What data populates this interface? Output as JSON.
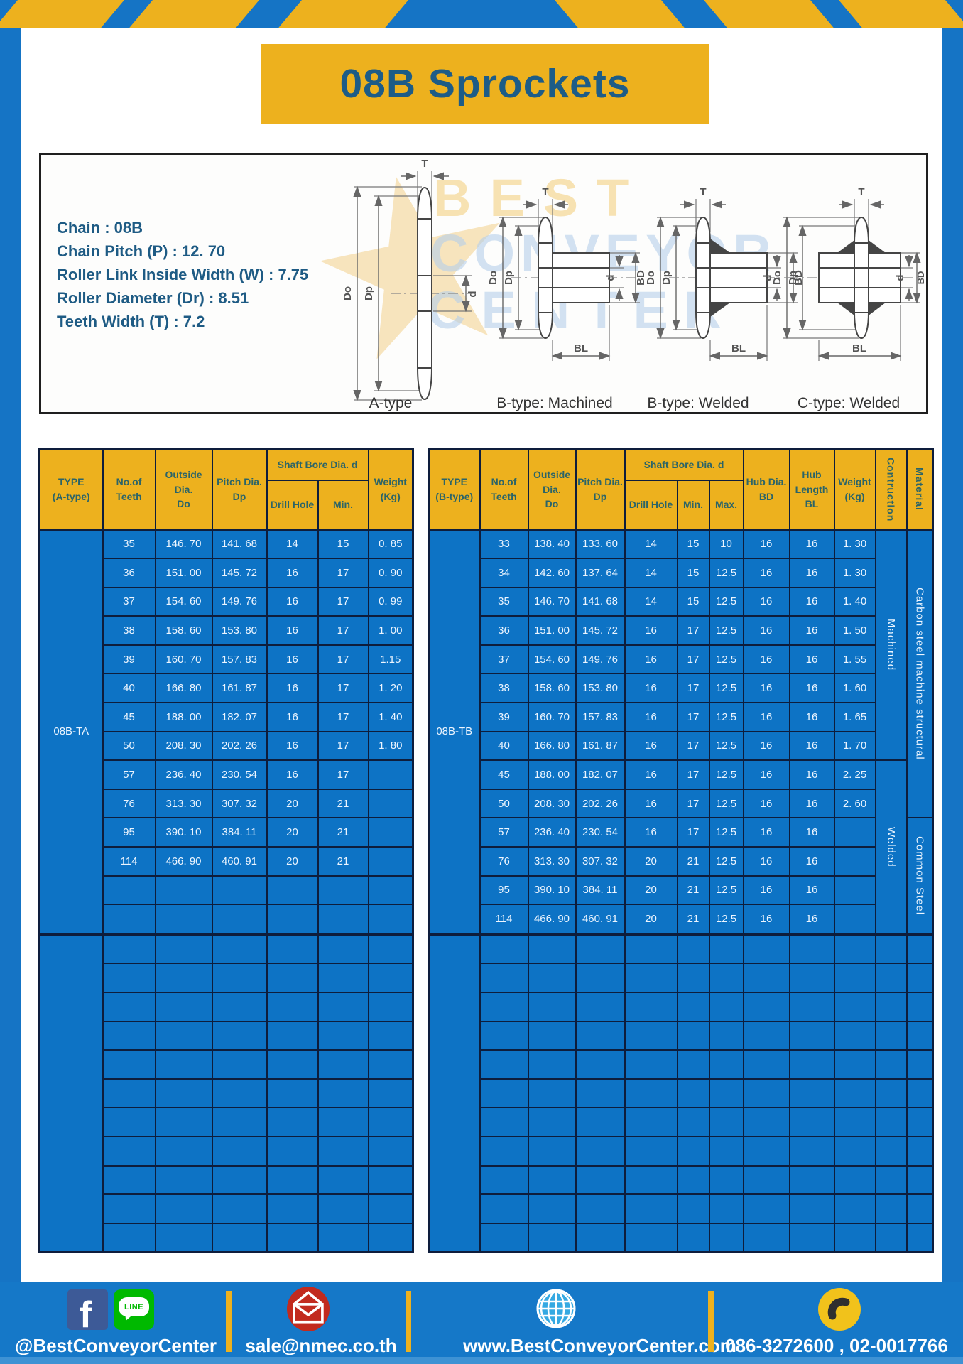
{
  "page": {
    "title": "08B Sprockets"
  },
  "specs": {
    "lines": [
      "Chain  : 08B",
      "Chain Pitch (P)  :  12. 70",
      "Roller Link Inside Width (W)  :  7.75",
      "Roller Diameter (Dr)  : 8.51",
      "Teeth Width (T)  :  7.2"
    ]
  },
  "diagram": {
    "captions": [
      "A-type",
      "B-type: Machined",
      "B-type: Welded",
      "C-type: Welded"
    ],
    "dims": {
      "t": "T",
      "outer": "Do",
      "pitch": "Dp",
      "bore": "d",
      "hub_dia": "BD",
      "hub_len": "BL"
    },
    "watermark": {
      "line1": "BEST",
      "line2": "CONVEYOR",
      "line3": "CENTER",
      "star": "★"
    }
  },
  "left_table": {
    "headers": {
      "type": "TYPE\n(A-type)",
      "teeth": "No.of\nTeeth",
      "outside": "Outside\nDia.\nDo",
      "pitch": "Pitch Dia.\nDp",
      "shaft_bore": "Shaft Bore Dia. d",
      "drill": "Drill Hole",
      "min": "Min.",
      "weight": "Weight\n(Kg)"
    },
    "type_label": "08B-TA",
    "rows": [
      [
        "35",
        "146. 70",
        "141. 68",
        "14",
        "15",
        "0. 85"
      ],
      [
        "36",
        "151. 00",
        "145. 72",
        "16",
        "17",
        "0. 90"
      ],
      [
        "37",
        "154. 60",
        "149. 76",
        "16",
        "17",
        "0. 99"
      ],
      [
        "38",
        "158. 60",
        "153. 80",
        "16",
        "17",
        "1. 00"
      ],
      [
        "39",
        "160. 70",
        "157. 83",
        "16",
        "17",
        "1.15"
      ],
      [
        "40",
        "166. 80",
        "161. 87",
        "16",
        "17",
        "1. 20"
      ],
      [
        "45",
        "188. 00",
        "182. 07",
        "16",
        "17",
        "1. 40"
      ],
      [
        "50",
        "208. 30",
        "202. 26",
        "16",
        "17",
        "1. 80"
      ],
      [
        "57",
        "236. 40",
        "230. 54",
        "16",
        "17",
        ""
      ],
      [
        "76",
        "313. 30",
        "307. 32",
        "20",
        "21",
        ""
      ],
      [
        "95",
        "390. 10",
        "384. 11",
        "20",
        "21",
        ""
      ],
      [
        "114",
        "466. 90",
        "460. 91",
        "20",
        "21",
        ""
      ],
      [
        "",
        "",
        "",
        "",
        "",
        ""
      ],
      [
        "",
        "",
        "",
        "",
        "",
        ""
      ]
    ],
    "empty_rows": 11
  },
  "right_table": {
    "headers": {
      "type": "TYPE\n(B-type)",
      "teeth": "No.of\nTeeth",
      "outside": "Outside\nDia.\nDo",
      "pitch": "Pitch Dia.\nDp",
      "shaft_bore": "Shaft Bore Dia. d",
      "drill": "Drill Hole",
      "min": "Min.",
      "max": "Max.",
      "hub_dia": "Hub Dia.\nBD",
      "hub_len": "Hub\nLength\nBL",
      "weight": "Weight\n(Kg)",
      "construction": "Contruction",
      "material": "Material"
    },
    "type_label": "08B-TB",
    "rows": [
      [
        "33",
        "138. 40",
        "133. 60",
        "14",
        "15",
        "10",
        "16",
        "16",
        "1. 30"
      ],
      [
        "34",
        "142. 60",
        "137. 64",
        "14",
        "15",
        "12.5",
        "16",
        "16",
        "1. 30"
      ],
      [
        "35",
        "146. 70",
        "141. 68",
        "14",
        "15",
        "12.5",
        "16",
        "16",
        "1. 40"
      ],
      [
        "36",
        "151. 00",
        "145. 72",
        "16",
        "17",
        "12.5",
        "16",
        "16",
        "1. 50"
      ],
      [
        "37",
        "154. 60",
        "149. 76",
        "16",
        "17",
        "12.5",
        "16",
        "16",
        "1. 55"
      ],
      [
        "38",
        "158. 60",
        "153. 80",
        "16",
        "17",
        "12.5",
        "16",
        "16",
        "1. 60"
      ],
      [
        "39",
        "160. 70",
        "157. 83",
        "16",
        "17",
        "12.5",
        "16",
        "16",
        "1. 65"
      ],
      [
        "40",
        "166. 80",
        "161. 87",
        "16",
        "17",
        "12.5",
        "16",
        "16",
        "1. 70"
      ],
      [
        "45",
        "188. 00",
        "182. 07",
        "16",
        "17",
        "12.5",
        "16",
        "16",
        "2. 25"
      ],
      [
        "50",
        "208. 30",
        "202. 26",
        "16",
        "17",
        "12.5",
        "16",
        "16",
        "2. 60"
      ],
      [
        "57",
        "236. 40",
        "230. 54",
        "16",
        "17",
        "12.5",
        "16",
        "16",
        ""
      ],
      [
        "76",
        "313. 30",
        "307. 32",
        "20",
        "21",
        "12.5",
        "16",
        "16",
        ""
      ],
      [
        "95",
        "390. 10",
        "384. 11",
        "20",
        "21",
        "12.5",
        "16",
        "16",
        ""
      ],
      [
        "114",
        "466. 90",
        "460. 91",
        "20",
        "21",
        "12.5",
        "16",
        "16",
        ""
      ]
    ],
    "construction_spans": [
      {
        "label": "Machined",
        "rows": 8
      },
      {
        "label": "Welded",
        "rows": 6
      }
    ],
    "material_spans": [
      {
        "label": "Carbon steel  machine structural",
        "rows": 10
      },
      {
        "label": "Common  Steel",
        "rows": 4
      }
    ],
    "empty_rows": 11
  },
  "footer": {
    "facebook_label": "f",
    "line_label": "LINE",
    "social_handle": "@BestConveyorCenter",
    "email": "sale@nmec.co.th",
    "website": "www.BestConveyorCenter.com",
    "phones": "086-3272600 , 02-0017766"
  },
  "colors": {
    "frame_blue": "#1574C5",
    "stripe_yellow": "#EDB11E",
    "banner_yellow": "#EDB11E",
    "title_text": "#1D5C87",
    "header_yellow": "#EDB11E",
    "header_text": "#2B6468",
    "body_blue": "#0D73C5",
    "border_navy": "#0E1D3C",
    "cell_text": "#ECF5FF",
    "footer_blue": "#1578C8",
    "footer_strip": "#3E92D4",
    "facebook_blue": "#3D5A97",
    "line_green": "#00B900",
    "mail_red": "#C22A1E",
    "globe_blue": "#35A9E2",
    "phone_yellow": "#F1C21B"
  }
}
